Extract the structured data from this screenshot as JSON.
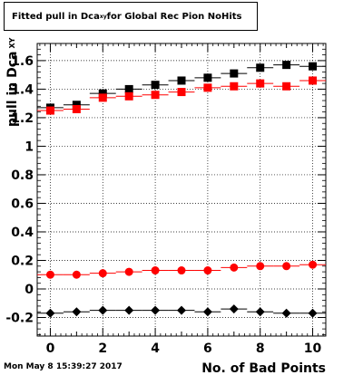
{
  "chart_data": {
    "type": "scatter",
    "title_prefix": "Fitted pull in Dca",
    "title_sub": "xy",
    "title_suffix": " for Global Rec Pion NoHits",
    "xlabel": "No. of Bad Points",
    "ylabel": "pull in Dca",
    "ylabel_sub": "XY",
    "xlim": [
      -0.5,
      10.5
    ],
    "ylim": [
      -0.33,
      1.72
    ],
    "xticks": [
      0,
      2,
      4,
      6,
      8,
      10
    ],
    "yticks": [
      -0.2,
      0,
      0.2,
      0.4,
      0.6,
      0.8,
      1,
      1.2,
      1.4,
      1.6
    ],
    "ytick_labels": [
      "-0.2",
      "0",
      "0.2",
      "0.4",
      "0.6",
      "0.8",
      "1",
      "1.2",
      "1.4",
      "1.6"
    ],
    "grid": true,
    "x": [
      0,
      1,
      2,
      3,
      4,
      5,
      6,
      7,
      8,
      9,
      10
    ],
    "series": [
      {
        "marker": "square",
        "color": "#000000",
        "values": [
          1.27,
          1.29,
          1.37,
          1.4,
          1.43,
          1.46,
          1.48,
          1.51,
          1.55,
          1.57,
          1.56
        ]
      },
      {
        "marker": "square",
        "color": "#ff0000",
        "values": [
          1.25,
          1.26,
          1.34,
          1.35,
          1.36,
          1.38,
          1.41,
          1.42,
          1.44,
          1.42,
          1.46
        ]
      },
      {
        "marker": "circle",
        "color": "#ff0000",
        "values": [
          0.1,
          0.1,
          0.11,
          0.12,
          0.13,
          0.13,
          0.13,
          0.15,
          0.16,
          0.16,
          0.17
        ]
      },
      {
        "marker": "diamond",
        "color": "#000000",
        "values": [
          -0.17,
          -0.16,
          -0.15,
          -0.15,
          -0.15,
          -0.15,
          -0.16,
          -0.14,
          -0.16,
          -0.17,
          -0.17
        ]
      }
    ]
  },
  "datestamp": "Mon May  8 15:39:27 2017"
}
